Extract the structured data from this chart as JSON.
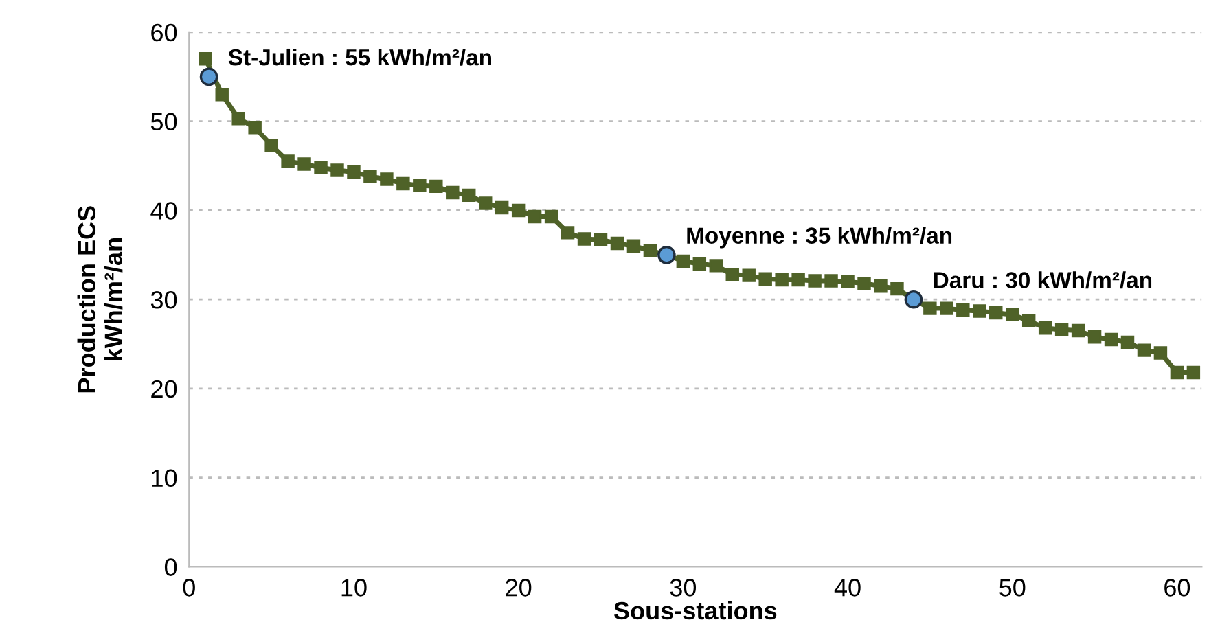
{
  "chart_data": {
    "type": "line",
    "xlabel": "Sous-stations",
    "ylabel": "Production ECS\nkWh/m²/an",
    "xlim": [
      0,
      61.5
    ],
    "xticks": [
      0,
      10,
      20,
      30,
      40,
      50,
      60
    ],
    "ylim": [
      0,
      60
    ],
    "yticks": [
      0,
      10,
      20,
      30,
      40,
      50,
      60
    ],
    "grid": "y",
    "marker": "square",
    "series": [
      {
        "color": "#4f6228",
        "x": [
          1,
          2,
          3,
          4,
          5,
          6,
          7,
          8,
          9,
          10,
          11,
          12,
          13,
          14,
          15,
          16,
          17,
          18,
          19,
          20,
          21,
          22,
          23,
          24,
          25,
          26,
          27,
          28,
          29,
          30,
          31,
          32,
          33,
          34,
          35,
          36,
          37,
          38,
          39,
          40,
          41,
          42,
          43,
          44,
          45,
          46,
          47,
          48,
          49,
          50,
          51,
          52,
          53,
          54,
          55,
          56,
          57,
          58,
          59,
          60,
          61
        ],
        "values": [
          57,
          53,
          50.3,
          49.3,
          47.3,
          45.5,
          45.2,
          44.8,
          44.5,
          44.3,
          43.8,
          43.5,
          43,
          42.8,
          42.7,
          42,
          41.7,
          40.8,
          40.3,
          40,
          39.3,
          39.3,
          37.5,
          36.8,
          36.7,
          36.3,
          36,
          35.5,
          35,
          34.3,
          34,
          33.8,
          32.8,
          32.7,
          32.3,
          32.2,
          32.2,
          32.1,
          32.1,
          32,
          31.8,
          31.5,
          31.2,
          30,
          29,
          29,
          28.8,
          28.7,
          28.5,
          28.3,
          27.6,
          26.8,
          26.6,
          26.5,
          25.8,
          25.5,
          25.2,
          24.3,
          24,
          21.8,
          21.8
        ]
      },
      {
        "type": "scatter",
        "color": "#5b9bd5",
        "marker": "circle",
        "x": [
          1.2,
          29,
          44
        ],
        "values": [
          55,
          35,
          30
        ]
      }
    ],
    "annotations": [
      {
        "text": "St-Julien : 55 kWh/m²/an",
        "x": 1.2,
        "y": 55
      },
      {
        "text": "Moyenne : 35 kWh/m²/an",
        "x": 29,
        "y": 35
      },
      {
        "text": "Daru : 30 kWh/m²/an",
        "x": 44,
        "y": 30
      }
    ]
  }
}
